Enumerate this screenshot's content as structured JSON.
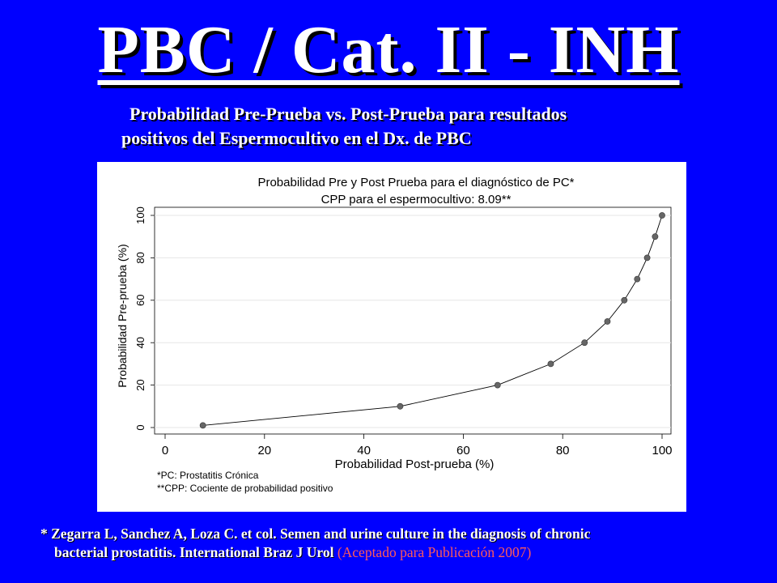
{
  "slide": {
    "title": "PBC / Cat. II - INH",
    "subtitle_line1": "Probabilidad Pre-Prueba vs. Post-Prueba para resultados",
    "subtitle_line2": "positivos del Espermocultivo en el Dx. de PBC",
    "reference_line1": "* Zegarra L, Sanchez A, Loza C. et col. Semen and urine culture in the diagnosis of chronic",
    "reference_line2": "bacterial prostatitis. International Braz J Urol",
    "reference_status": "(Aceptado para Publicación 2007)"
  },
  "colors": {
    "background": "#0000ff",
    "title_text": "#ffffff",
    "status_text": "#ff5a5a",
    "chart_background": "#ffffff",
    "grid": "#e6e6e6",
    "marker": "#666666"
  },
  "chart_data": {
    "type": "line",
    "title": "Probabilidad Pre y Post Prueba para el diagnóstico de PC*",
    "subtitle": "CPP para el espermocultivo: 8.09**",
    "xlabel": "Probabilidad Post-prueba (%)",
    "ylabel": "Probabilidad Pre-prueba (%)",
    "xlim": [
      0,
      100
    ],
    "ylim": [
      0,
      100
    ],
    "xticks": [
      "0",
      "20",
      "40",
      "60",
      "80",
      "100"
    ],
    "yticks": [
      "0",
      "20",
      "40",
      "60",
      "80",
      "100"
    ],
    "grid": "horizontal",
    "x": [
      7.6,
      47.3,
      66.9,
      77.6,
      84.4,
      89.0,
      92.4,
      95.0,
      97.0,
      98.6,
      100
    ],
    "y": [
      1,
      10,
      20,
      30,
      40,
      50,
      60,
      70,
      80,
      90,
      100
    ],
    "notes": [
      "*PC: Prostatitis Crónica",
      "**CPP: Cociente de probabilidad positivo"
    ]
  }
}
